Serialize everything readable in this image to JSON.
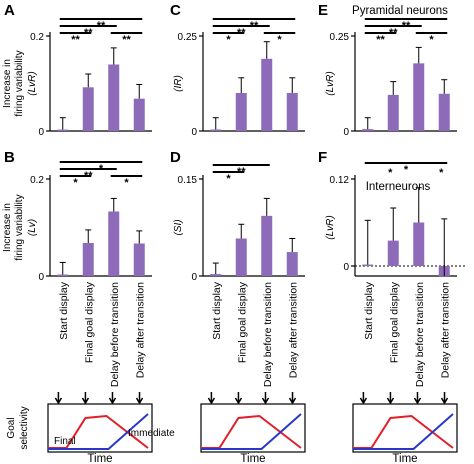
{
  "chart_data": [
    {
      "panel": "A",
      "type": "bar",
      "title": "",
      "ylabel": "Increase in firing variability",
      "ylabel_sub": "(LvR)",
      "ylim": [
        0,
        0.2
      ],
      "yticks": [
        "0",
        "0.2"
      ],
      "categories": [
        "Start display",
        "Final goal display",
        "Delay before transition",
        "Delay after transition"
      ],
      "values": [
        0.003,
        0.092,
        0.14,
        0.068
      ],
      "errors": [
        0.028,
        0.12,
        0.175,
        0.098
      ],
      "significance": [
        {
          "from": 0,
          "to": 3,
          "label": "**"
        },
        {
          "from": 0,
          "to": 2,
          "label": "**"
        },
        {
          "from": 0,
          "to": 1,
          "label": "**"
        },
        {
          "from": 2,
          "to": 3,
          "label": "**"
        }
      ]
    },
    {
      "panel": "C",
      "type": "bar",
      "title": "",
      "ylabel": "(IR)",
      "ylim": [
        0,
        0.25
      ],
      "yticks": [
        "0",
        "0.25"
      ],
      "categories": [
        "Start display",
        "Final goal display",
        "Delay before transition",
        "Delay after transition"
      ],
      "values": [
        0.004,
        0.1,
        0.19,
        0.1
      ],
      "errors": [
        0.035,
        0.14,
        0.235,
        0.14
      ],
      "significance": [
        {
          "from": 0,
          "to": 3,
          "label": "**"
        },
        {
          "from": 0,
          "to": 2,
          "label": "**"
        },
        {
          "from": 0,
          "to": 1,
          "label": "*"
        },
        {
          "from": 2,
          "to": 3,
          "label": "*"
        }
      ]
    },
    {
      "panel": "E",
      "type": "bar",
      "title": "Pyramidal neurons",
      "ylabel": "(LvR)",
      "ylim": [
        0,
        0.25
      ],
      "yticks": [
        "0",
        "0.25"
      ],
      "categories": [
        "Start display",
        "Final goal display",
        "Delay before transition",
        "Delay after transition"
      ],
      "values": [
        0.005,
        0.095,
        0.178,
        0.098
      ],
      "errors": [
        0.035,
        0.13,
        0.22,
        0.135
      ],
      "significance": [
        {
          "from": 0,
          "to": 3,
          "label": "**"
        },
        {
          "from": 0,
          "to": 2,
          "label": "**"
        },
        {
          "from": 0,
          "to": 1,
          "label": "**"
        },
        {
          "from": 2,
          "to": 3,
          "label": "*"
        }
      ]
    },
    {
      "panel": "B",
      "type": "bar",
      "title": "",
      "ylabel": "Increase in firing variability",
      "ylabel_sub": "(Lv)",
      "ylim": [
        0,
        0.2
      ],
      "yticks": [
        "0",
        "0.2"
      ],
      "categories": [
        "Start display",
        "Final goal display",
        "Delay before transition",
        "Delay after transition"
      ],
      "values": [
        0.003,
        0.068,
        0.133,
        0.067
      ],
      "errors": [
        0.028,
        0.095,
        0.16,
        0.093
      ],
      "significance": [
        {
          "from": 0,
          "to": 3,
          "label": "*"
        },
        {
          "from": 0,
          "to": 2,
          "label": "**"
        },
        {
          "from": 0,
          "to": 1,
          "label": "*"
        },
        {
          "from": 2,
          "to": 3,
          "label": "*"
        }
      ]
    },
    {
      "panel": "D",
      "type": "bar",
      "title": "",
      "ylabel": "(SI)",
      "ylim": [
        0,
        0.15
      ],
      "yticks": [
        "0",
        "0.15"
      ],
      "categories": [
        "Start display",
        "Final goal display",
        "Delay before transition",
        "Delay after transition"
      ],
      "values": [
        0.003,
        0.058,
        0.093,
        0.037
      ],
      "errors": [
        0.02,
        0.08,
        0.12,
        0.058
      ],
      "significance": [
        {
          "from": 0,
          "to": 2,
          "label": "**"
        },
        {
          "from": 0,
          "to": 1,
          "label": "*"
        }
      ]
    },
    {
      "panel": "F",
      "type": "bar",
      "title": "Interneurons",
      "ylabel": "(LvR)",
      "ylim": [
        -0.02,
        0.12
      ],
      "yticks": [
        "0",
        "0.12"
      ],
      "categories": [
        "Start display",
        "Final goal display",
        "Delay before transition",
        "Delay after transition"
      ],
      "values": [
        0.002,
        0.035,
        0.06,
        -0.014
      ],
      "errors": [
        0.063,
        0.08,
        0.108,
        0.065
      ],
      "significance": [
        {
          "from": 0,
          "to": 3,
          "label": "*"
        }
      ],
      "extra_stars": [
        {
          "at": 1,
          "label": "*"
        },
        {
          "at": 3,
          "label": "*"
        }
      ]
    }
  ],
  "schematic": {
    "ylabel": "Goal selectivity",
    "xlabel": "Time",
    "labels": {
      "final": "Final",
      "immediate": "Immediate"
    },
    "colors": {
      "final": "#e0202a",
      "immediate": "#2a37c8"
    }
  },
  "colors": {
    "bar": "#8e6bb8"
  }
}
